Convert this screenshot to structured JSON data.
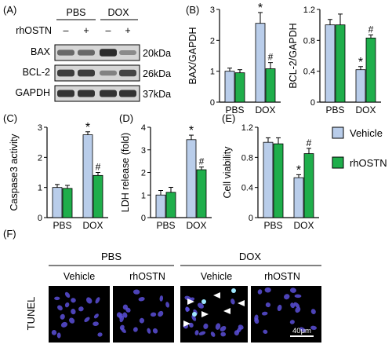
{
  "panel_letters": [
    "(A)",
    "(B)",
    "(C)",
    "(D)",
    "(E)",
    "(F)"
  ],
  "legend": {
    "items": [
      {
        "label": "Vehicle",
        "color": "#b9cdea"
      },
      {
        "label": "rhOSTN",
        "color": "#1fae4b"
      }
    ]
  },
  "western_blot": {
    "groups": [
      "PBS",
      "DOX"
    ],
    "treatment_label": "rhOSTN",
    "treatment_signs": [
      "–",
      "+",
      "–",
      "+"
    ],
    "rows": [
      {
        "protein": "BAX",
        "size": "20kDa",
        "intensities": [
          0.55,
          0.55,
          0.9,
          0.35
        ]
      },
      {
        "protein": "BCL-2",
        "size": "26kDa",
        "intensities": [
          0.8,
          0.8,
          0.4,
          0.75
        ]
      },
      {
        "protein": "GAPDH",
        "size": "37kDa",
        "intensities": [
          0.85,
          0.85,
          0.85,
          0.85
        ]
      }
    ]
  },
  "chart_data": [
    {
      "id": "bax",
      "type": "bar",
      "categories": [
        "PBS",
        "DOX"
      ],
      "ylabel": "BAX/GAPDH",
      "ylim": [
        0,
        3
      ],
      "yticks": [
        0,
        1,
        2,
        3
      ],
      "series": [
        {
          "name": "Vehicle",
          "values": [
            1.0,
            2.55
          ],
          "errors": [
            0.1,
            0.35
          ]
        },
        {
          "name": "rhOSTN",
          "values": [
            0.95,
            1.08
          ],
          "errors": [
            0.1,
            0.2
          ]
        }
      ],
      "annotations": [
        {
          "category": 1,
          "series": 0,
          "text": "*"
        },
        {
          "category": 1,
          "series": 1,
          "text": "#"
        }
      ]
    },
    {
      "id": "bcl2",
      "type": "bar",
      "categories": [
        "PBS",
        "DOX"
      ],
      "ylabel": "BCL-2/GAPDH",
      "ylim": [
        0,
        1.2
      ],
      "yticks": [
        0,
        0.4,
        0.8,
        1.2
      ],
      "series": [
        {
          "name": "Vehicle",
          "values": [
            1.0,
            0.42
          ],
          "errors": [
            0.07,
            0.04
          ]
        },
        {
          "name": "rhOSTN",
          "values": [
            1.0,
            0.83
          ],
          "errors": [
            0.14,
            0.04
          ]
        }
      ],
      "annotations": [
        {
          "category": 1,
          "series": 0,
          "text": "*"
        },
        {
          "category": 1,
          "series": 1,
          "text": "#"
        }
      ]
    },
    {
      "id": "caspase",
      "type": "bar",
      "categories": [
        "PBS",
        "DOX"
      ],
      "ylabel": "Caspase3 activity",
      "ylim": [
        0,
        3
      ],
      "yticks": [
        0,
        1,
        2,
        3
      ],
      "series": [
        {
          "name": "Vehicle",
          "values": [
            1.0,
            2.75
          ],
          "errors": [
            0.1,
            0.1
          ]
        },
        {
          "name": "rhOSTN",
          "values": [
            0.97,
            1.4
          ],
          "errors": [
            0.1,
            0.1
          ]
        }
      ],
      "annotations": [
        {
          "category": 1,
          "series": 0,
          "text": "*"
        },
        {
          "category": 1,
          "series": 1,
          "text": "#"
        }
      ]
    },
    {
      "id": "ldh",
      "type": "bar",
      "categories": [
        "PBS",
        "DOX"
      ],
      "ylabel": "LDH release (fold)",
      "ylim": [
        0,
        4
      ],
      "yticks": [
        0,
        1,
        2,
        3,
        4
      ],
      "series": [
        {
          "name": "Vehicle",
          "values": [
            1.0,
            3.45
          ],
          "errors": [
            0.2,
            0.2
          ]
        },
        {
          "name": "rhOSTN",
          "values": [
            1.12,
            2.12
          ],
          "errors": [
            0.22,
            0.12
          ]
        }
      ],
      "annotations": [
        {
          "category": 1,
          "series": 0,
          "text": "*"
        },
        {
          "category": 1,
          "series": 1,
          "text": "#"
        }
      ]
    },
    {
      "id": "viability",
      "type": "bar",
      "categories": [
        "PBS",
        "DOX"
      ],
      "ylabel": "Cell viability",
      "ylim": [
        0,
        1.2
      ],
      "yticks": [
        0,
        0.4,
        0.8,
        1.2
      ],
      "series": [
        {
          "name": "Vehicle",
          "values": [
            1.0,
            0.53
          ],
          "errors": [
            0.06,
            0.04
          ]
        },
        {
          "name": "rhOSTN",
          "values": [
            0.98,
            0.85
          ],
          "errors": [
            0.08,
            0.07
          ]
        }
      ],
      "annotations": [
        {
          "category": 1,
          "series": 0,
          "text": "*"
        },
        {
          "category": 1,
          "series": 1,
          "text": "#"
        }
      ]
    }
  ],
  "tunel": {
    "stain_label": "TUNEL",
    "groups": [
      "PBS",
      "DOX"
    ],
    "columns": [
      "Vehicle",
      "rhOSTN",
      "Vehicle",
      "rhOSTN"
    ],
    "scale_bar": "40μm",
    "nucleus_color": "#5a4fd8",
    "positive_color": "#9fe8ff"
  }
}
